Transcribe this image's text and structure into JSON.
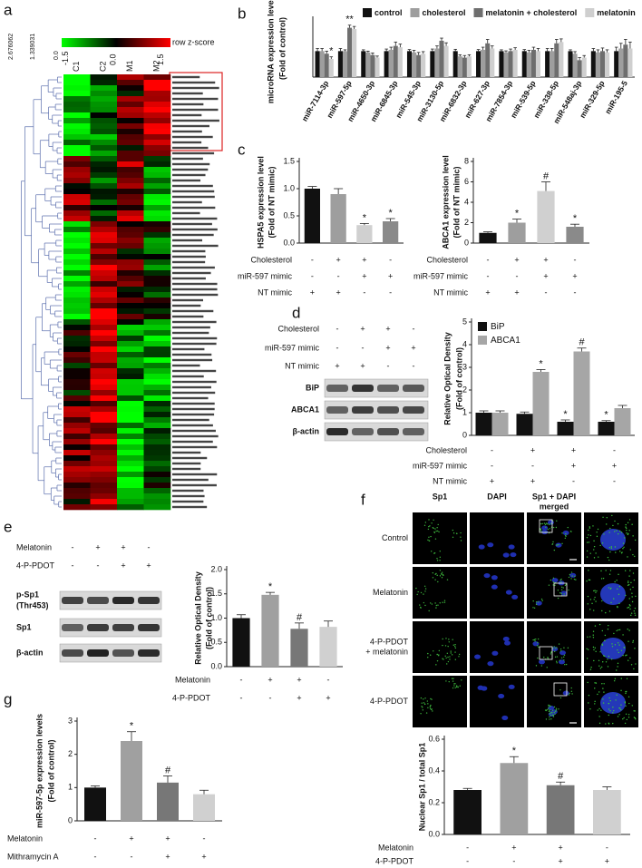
{
  "panel_labels": [
    "a",
    "b",
    "c",
    "d",
    "e",
    "f",
    "g"
  ],
  "heatmap": {
    "colorbar_label": "row z-score",
    "colorbar_ticks": [
      -1.5,
      {
        "value": 0,
        "label": "0.0"
      },
      1.5
    ],
    "columns": [
      "C1",
      "C2",
      "M1",
      "M2"
    ],
    "dendrogram_ticks": [
      "2.676062",
      "1.339031",
      "0.0"
    ]
  },
  "blots": [
    {
      "conditions": [
        {
          "label": "Cholesterol",
          "signs": [
            "-",
            "+",
            "+",
            "-"
          ]
        },
        {
          "label": "miR-597 mimic",
          "signs": [
            "-",
            "-",
            "+",
            "+"
          ]
        },
        {
          "label": "NT mimic",
          "signs": [
            "+",
            "+",
            "-",
            "-"
          ]
        }
      ],
      "rows": [
        [
          "BiP"
        ],
        [
          "ABCA1"
        ],
        [
          "β-actin"
        ]
      ]
    },
    {
      "conditions": [
        {
          "label": "Melatonin",
          "signs": [
            "-",
            "+",
            "+",
            "-"
          ]
        },
        {
          "label": "4-P-PDOT",
          "signs": [
            "-",
            "-",
            "+",
            "+"
          ]
        }
      ],
      "rows": [
        [
          "p-Sp1",
          "(Thr453)"
        ],
        [
          "Sp1"
        ],
        [
          "β-actin"
        ]
      ]
    }
  ],
  "micrographs": {
    "columns": [
      [
        "Sp1"
      ],
      [
        "DAPI"
      ],
      [
        "Sp1 + DAPI",
        "merged"
      ]
    ],
    "rows": [
      [
        "Control"
      ],
      [
        "Melatonin"
      ],
      [
        "4-P-PDOT",
        "+ melatonin"
      ],
      [
        "4-P-PDOT"
      ]
    ]
  },
  "chart_data": [
    {
      "type": "grouped_bar",
      "ylabel": [
        "microRNA expression levels",
        "(Fold of control)"
      ],
      "categories": [
        "miR-7114-3p",
        "miR-597-5p",
        "miR-4650-3p",
        "miR-6845-3p",
        "miR-545-3p",
        "miR-3130-5p",
        "miR-6832-3p",
        "miR-627-3p",
        "miR-7854-3p",
        "miR-539-5p",
        "miR-338-5p",
        "miR-548aj-3p",
        "miR-329-5p",
        "miR-195-5"
      ],
      "ylim": [
        0,
        2.2
      ],
      "legend": "top",
      "series": [
        {
          "name": "control",
          "color": "#111111",
          "values": [
            1.0,
            1.0,
            1.0,
            1.0,
            1.0,
            1.0,
            1.0,
            1.0,
            1.0,
            1.0,
            1.0,
            1.0,
            1.0,
            1.0
          ],
          "errors": [
            0.1,
            0.1,
            0.05,
            0.08,
            0.06,
            0.08,
            0.07,
            0.06,
            0.05,
            0.06,
            0.1,
            0.05,
            0.1,
            0.15
          ]
        },
        {
          "name": "cholesterol",
          "color": "#9e9e9e",
          "values": [
            1.0,
            1.0,
            0.95,
            1.05,
            0.95,
            1.1,
            0.8,
            1.05,
            0.95,
            0.95,
            1.0,
            0.9,
            0.95,
            1.1
          ],
          "errors": [
            0.1,
            0.05,
            0.05,
            0.1,
            0.08,
            0.1,
            0.06,
            0.1,
            0.06,
            0.08,
            0.1,
            0.08,
            0.1,
            0.2
          ]
        },
        {
          "name": "melatonin + cholesterol",
          "color": "#6e6e6e",
          "values": [
            0.9,
            1.9,
            0.85,
            1.2,
            0.85,
            1.4,
            0.75,
            1.3,
            1.0,
            1.05,
            1.3,
            0.65,
            1.0,
            1.25
          ],
          "errors": [
            0.1,
            0.1,
            0.08,
            0.15,
            0.1,
            0.1,
            0.08,
            0.15,
            0.08,
            0.1,
            0.15,
            0.1,
            0.12,
            0.2
          ],
          "markers": [
            null,
            "**",
            null,
            null,
            null,
            null,
            null,
            null,
            null,
            null,
            null,
            null,
            null,
            null
          ]
        },
        {
          "name": "melatonin",
          "color": "#cfcfcf",
          "values": [
            0.7,
            1.85,
            0.75,
            1.15,
            0.9,
            1.2,
            0.8,
            1.1,
            1.05,
            1.0,
            1.35,
            0.75,
            0.95,
            1.1
          ],
          "errors": [
            0.08,
            0.1,
            0.06,
            0.12,
            0.08,
            0.12,
            0.06,
            0.1,
            0.08,
            0.1,
            0.12,
            0.08,
            0.1,
            0.25
          ],
          "markers": [
            "*",
            null,
            null,
            null,
            null,
            null,
            null,
            null,
            null,
            null,
            null,
            null,
            null,
            null
          ]
        }
      ]
    },
    {
      "type": "bar",
      "ylabel": [
        "HSPA5 expression level",
        "(Fold of NT mimic)"
      ],
      "categories": [
        null,
        null,
        null,
        null
      ],
      "values": [
        1.0,
        0.9,
        0.33,
        0.4
      ],
      "errors": [
        0.04,
        0.1,
        0.03,
        0.05
      ],
      "markers": [
        null,
        null,
        "*",
        "*"
      ],
      "colors": [
        "#111111",
        "#9e9e9e",
        "#d0d0d0",
        "#8a8a8a"
      ],
      "ylim": [
        0,
        1.5
      ],
      "yticks": [
        {
          "value": 0,
          "label": "0.0"
        },
        0.5,
        {
          "value": 1,
          "label": "1.0"
        },
        1.5
      ],
      "conditions": [
        {
          "label": "Cholesterol",
          "signs": [
            "-",
            "+",
            "+",
            "-"
          ]
        },
        {
          "label": "miR-597 mimic",
          "signs": [
            "-",
            "-",
            "+",
            "+"
          ]
        },
        {
          "label": "NT mimic",
          "signs": [
            "+",
            "+",
            "-",
            "-"
          ]
        }
      ]
    },
    {
      "type": "bar",
      "ylabel": [
        "ABCA1 expression level",
        "(Fold of NT mimic)"
      ],
      "categories": [
        null,
        null,
        null,
        null
      ],
      "values": [
        1.0,
        2.0,
        5.1,
        1.6
      ],
      "errors": [
        0.1,
        0.35,
        0.9,
        0.25
      ],
      "markers": [
        null,
        "*",
        "#",
        "*"
      ],
      "colors": [
        "#111111",
        "#9e9e9e",
        "#d0d0d0",
        "#8a8a8a"
      ],
      "ylim": [
        0,
        8
      ],
      "yticks": [
        0,
        2,
        4,
        6,
        8
      ],
      "conditions": [
        {
          "label": "Cholesterol",
          "signs": [
            "-",
            "+",
            "+",
            "-"
          ]
        },
        {
          "label": "miR-597 mimic",
          "signs": [
            "-",
            "-",
            "+",
            "+"
          ]
        },
        {
          "label": "NT mimic",
          "signs": [
            "+",
            "+",
            "-",
            "-"
          ]
        }
      ]
    },
    {
      "type": "grouped_bar",
      "ylabel": [
        "Relative Optical Density",
        "(Fold of control)"
      ],
      "categories": [
        null,
        null,
        null,
        null
      ],
      "ylim": [
        0,
        5
      ],
      "yticks": [
        0,
        1,
        2,
        3,
        4,
        5
      ],
      "legend": "top-left",
      "series": [
        {
          "name": "BiP",
          "color": "#111111",
          "values": [
            1.0,
            0.95,
            0.6,
            0.6
          ],
          "errors": [
            0.08,
            0.08,
            0.08,
            0.05
          ],
          "markers": [
            null,
            null,
            "*",
            "*"
          ]
        },
        {
          "name": "ABCA1",
          "color": "#a6a6a6",
          "values": [
            1.0,
            2.8,
            3.7,
            1.2
          ],
          "errors": [
            0.08,
            0.1,
            0.15,
            0.12
          ],
          "markers": [
            null,
            "*",
            "#",
            null
          ]
        }
      ],
      "conditions": [
        {
          "label": "Cholesterol",
          "signs": [
            "-",
            "+",
            "+",
            "-"
          ]
        },
        {
          "label": "miR-597 mimic",
          "signs": [
            "-",
            "-",
            "+",
            "+"
          ]
        },
        {
          "label": "NT mimic",
          "signs": [
            "+",
            "+",
            "-",
            "-"
          ]
        }
      ]
    },
    {
      "type": "bar",
      "ylabel": [
        "Relative Optical Density",
        "(Fold of control)"
      ],
      "categories": [
        null,
        null,
        null,
        null
      ],
      "values": [
        1.0,
        1.48,
        0.78,
        0.82
      ],
      "errors": [
        0.07,
        0.05,
        0.12,
        0.12
      ],
      "markers": [
        null,
        "*",
        "#",
        null
      ],
      "colors": [
        "#111111",
        "#a0a0a0",
        "#777777",
        "#d0d0d0"
      ],
      "ylim": [
        0,
        2
      ],
      "yticks": [
        {
          "value": 0,
          "label": "0.0"
        },
        0.5,
        {
          "value": 1,
          "label": "1.0"
        },
        1.5,
        {
          "value": 2,
          "label": "2.0"
        }
      ],
      "conditions": [
        {
          "label": "Melatonin",
          "signs": [
            "-",
            "+",
            "+",
            "-"
          ]
        },
        {
          "label": "4-P-PDOT",
          "signs": [
            "-",
            "-",
            "+",
            "+"
          ]
        }
      ]
    },
    {
      "type": "bar",
      "ylabel": [
        "Nuclear Sp1 / total Sp1"
      ],
      "categories": [
        null,
        null,
        null,
        null
      ],
      "values": [
        0.28,
        0.45,
        0.31,
        0.28
      ],
      "errors": [
        0.01,
        0.04,
        0.02,
        0.02
      ],
      "markers": [
        null,
        "*",
        "#",
        null
      ],
      "colors": [
        "#111111",
        "#a0a0a0",
        "#777777",
        "#d0d0d0"
      ],
      "ylim": [
        0,
        0.6
      ],
      "yticks": [
        {
          "value": 0,
          "label": "0.0"
        },
        0.2,
        0.4,
        0.6
      ],
      "conditions": [
        {
          "label": "Melatonin",
          "signs": [
            "-",
            "+",
            "+",
            "-"
          ]
        },
        {
          "label": "4-P-PDOT",
          "signs": [
            "-",
            "-",
            "+",
            "+"
          ]
        }
      ]
    },
    {
      "type": "bar",
      "ylabel": [
        "miR-597-5p expression levels",
        "(Fold of control)"
      ],
      "categories": [
        null,
        null,
        null,
        null
      ],
      "values": [
        1.0,
        2.4,
        1.15,
        0.8
      ],
      "errors": [
        0.05,
        0.28,
        0.2,
        0.12
      ],
      "markers": [
        null,
        "*",
        "#",
        null
      ],
      "colors": [
        "#111111",
        "#a0a0a0",
        "#777777",
        "#d0d0d0"
      ],
      "ylim": [
        0,
        3
      ],
      "yticks": [
        0,
        1,
        2,
        3
      ],
      "conditions": [
        {
          "label": "Melatonin",
          "signs": [
            "-",
            "+",
            "+",
            "-"
          ]
        },
        {
          "label": "Mithramycin A",
          "signs": [
            "-",
            "-",
            "+",
            "+"
          ]
        }
      ]
    }
  ]
}
